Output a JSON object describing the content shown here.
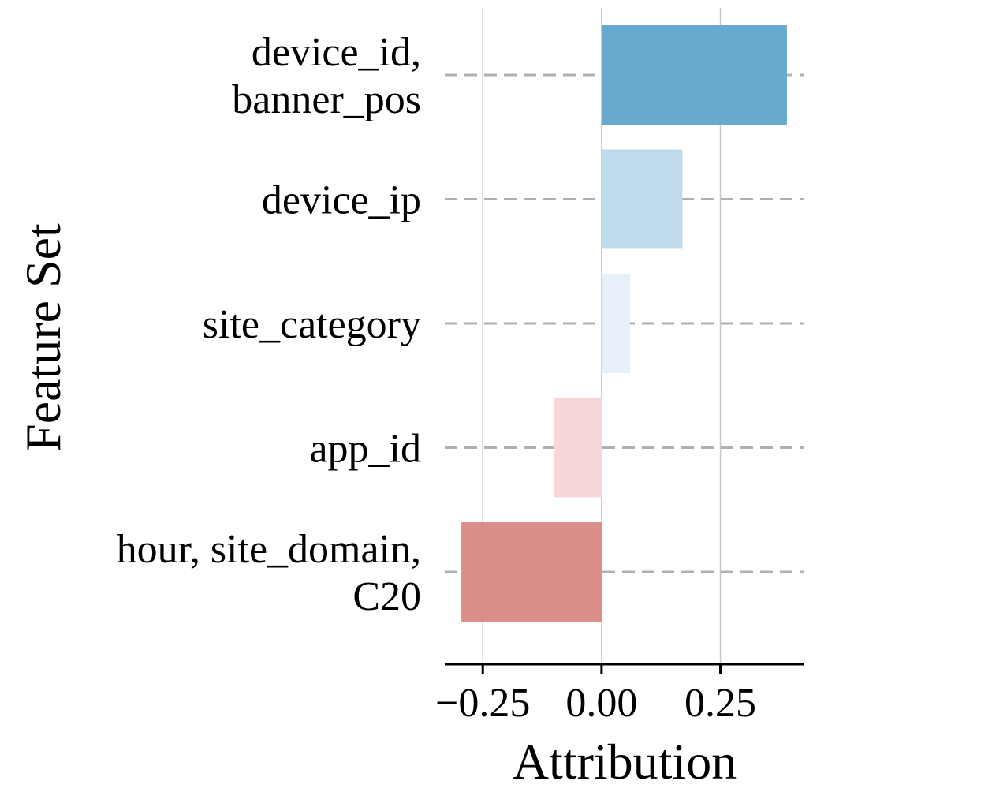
{
  "chart_data": {
    "type": "bar",
    "orientation": "horizontal",
    "categories": [
      [
        "device_id,",
        "banner_pos"
      ],
      [
        "device_ip"
      ],
      [
        "site_category"
      ],
      [
        "app_id"
      ],
      [
        "hour, site_domain,",
        "C20"
      ]
    ],
    "values": [
      0.39,
      0.17,
      0.06,
      -0.1,
      -0.295
    ],
    "bar_colors": [
      "#67a9cf",
      "#bfdbeb",
      "#e7f0f8",
      "#f5d7d8",
      "#db8e89"
    ],
    "xlabel": "Attribution",
    "ylabel": "Feature Set",
    "xlim": [
      -0.33,
      0.425
    ],
    "xticks": [
      -0.25,
      0.0,
      0.25
    ],
    "xtick_labels": [
      "−0.25",
      "0.00",
      "0.25"
    ],
    "vertical_grid": true,
    "category_guides": "dashed",
    "colors": {
      "grid": "#c8c8c8",
      "guide": "#b0b0b0",
      "axis": "#000000"
    }
  }
}
